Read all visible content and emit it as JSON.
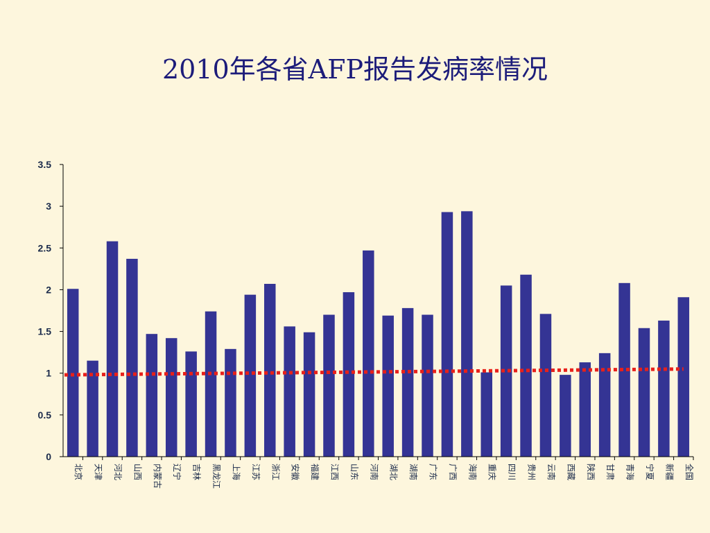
{
  "slide": {
    "background": "#fdf6dd"
  },
  "chart_data": {
    "type": "bar",
    "title": "2010年各省AFP报告发病率情况",
    "xlabel": "",
    "ylabel": "",
    "ylim": [
      0,
      3.5
    ],
    "yticks": [
      "0",
      "0.5",
      "1",
      "1.5",
      "2",
      "2.5",
      "3",
      "3.5"
    ],
    "categories": [
      "北京",
      "天津",
      "河北",
      "山西",
      "内蒙古",
      "辽宁",
      "吉林",
      "黑龙江",
      "上海",
      "江苏",
      "浙江",
      "安徽",
      "福建",
      "江西",
      "山东",
      "河南",
      "湖北",
      "湖南",
      "广东",
      "广西",
      "海南",
      "重庆",
      "四川",
      "贵州",
      "云南",
      "西藏",
      "陕西",
      "甘肃",
      "青海",
      "宁夏",
      "新疆",
      "全国"
    ],
    "values": [
      2.01,
      1.15,
      2.58,
      2.37,
      1.47,
      1.42,
      1.26,
      1.74,
      1.29,
      1.94,
      2.07,
      1.56,
      1.49,
      1.7,
      1.97,
      2.47,
      1.69,
      1.78,
      1.7,
      2.93,
      2.94,
      1.01,
      2.05,
      2.18,
      1.71,
      0.98,
      1.13,
      1.24,
      2.08,
      1.54,
      1.63,
      1.91
    ],
    "trendline": {
      "style": "dotted",
      "start": 0.98,
      "end": 1.05
    },
    "grid": false,
    "legend": "none",
    "colors": {
      "bar": "#343494",
      "trend": "#e8201a",
      "axis": "#000000"
    }
  }
}
